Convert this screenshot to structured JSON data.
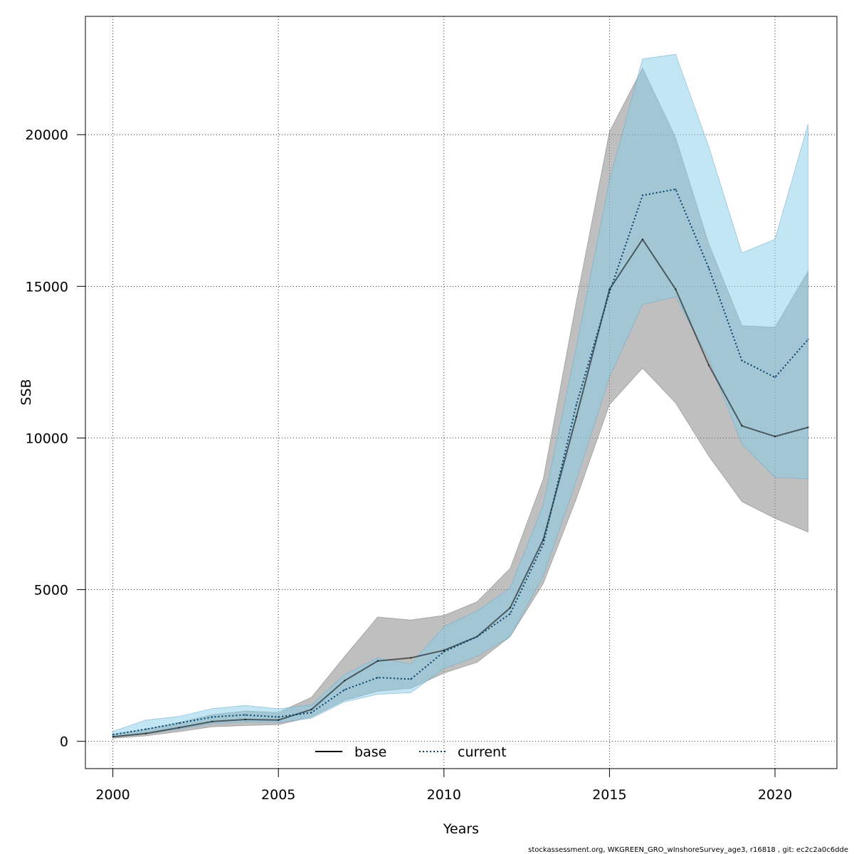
{
  "chart_data": {
    "type": "line",
    "xlabel": "Years",
    "ylabel": "SSB",
    "xlim": [
      1999.17,
      2021.87
    ],
    "ylim": [
      -900,
      23900
    ],
    "xticks": [
      2000,
      2005,
      2010,
      2015,
      2020
    ],
    "yticks": [
      0,
      5000,
      10000,
      15000,
      20000
    ],
    "grid": true,
    "legend_position": "bottom-center",
    "x": [
      2000,
      2001,
      2002,
      2003,
      2004,
      2005,
      2006,
      2007,
      2008,
      2009,
      2010,
      2011,
      2012,
      2013,
      2014,
      2015,
      2016,
      2017,
      2018,
      2019,
      2020,
      2021
    ],
    "series": [
      {
        "name": "base",
        "line_style": "solid",
        "color": "#000000",
        "band_color": "#808080",
        "values": [
          150,
          260,
          450,
          650,
          720,
          700,
          1050,
          2000,
          2650,
          2750,
          3000,
          3450,
          4400,
          6650,
          10700,
          14900,
          16550,
          14900,
          12400,
          10400,
          10050,
          10350
        ],
        "lower": [
          100,
          180,
          320,
          480,
          520,
          550,
          800,
          1350,
          1650,
          1750,
          2250,
          2600,
          3450,
          5200,
          8000,
          11100,
          12300,
          11150,
          9400,
          7900,
          7350,
          6900
        ],
        "upper": [
          230,
          400,
          620,
          880,
          1000,
          950,
          1450,
          2800,
          4100,
          4000,
          4150,
          4600,
          5700,
          8650,
          14500,
          20100,
          22200,
          19900,
          16400,
          13700,
          13650,
          15500
        ]
      },
      {
        "name": "current",
        "line_style": "dotted",
        "color": "#00426b",
        "band_color": "#87ceeb",
        "values": [
          220,
          400,
          600,
          800,
          870,
          800,
          950,
          1700,
          2100,
          2050,
          2950,
          3450,
          4200,
          6500,
          11100,
          14800,
          18000,
          18200,
          15600,
          12550,
          12000,
          13250
        ],
        "lower": [
          140,
          250,
          400,
          580,
          640,
          620,
          760,
          1300,
          1550,
          1600,
          2400,
          2800,
          3450,
          5450,
          8600,
          12000,
          14400,
          14650,
          12600,
          9800,
          8700,
          8650
        ],
        "upper": [
          330,
          700,
          820,
          1080,
          1180,
          1070,
          1200,
          2200,
          2750,
          2550,
          3780,
          4300,
          5050,
          7800,
          13000,
          18500,
          22500,
          22650,
          19600,
          16100,
          16550,
          20350
        ]
      }
    ],
    "footer": "stockassessment.org, WKGREEN_GRO_wInshoreSurvey_age3, r16818 , git: ec2c2a0c6dde"
  }
}
